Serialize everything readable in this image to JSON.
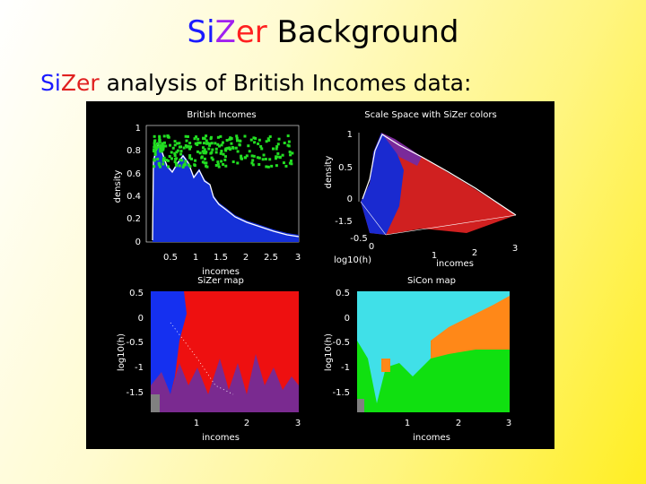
{
  "title": {
    "segments": [
      {
        "text": "Si",
        "color": "#1a1aff"
      },
      {
        "text": "Z",
        "color": "#a020f0"
      },
      {
        "text": "er",
        "color": "#ff2020"
      },
      {
        "text": " Background",
        "color": "#000000"
      }
    ]
  },
  "subtitle": {
    "segments": [
      {
        "text": "Si",
        "color": "#1a1aff"
      },
      {
        "text": "Zer",
        "color": "#e02020"
      },
      {
        "text": " analysis of British Incomes data:",
        "color": "#000000"
      }
    ]
  },
  "figure": {
    "panels": [
      {
        "title": "British Incomes",
        "y_label": "density",
        "x_label": "incomes",
        "y_ticks": [
          "1",
          "0.8",
          "0.6",
          "0.4",
          "0.2",
          "0"
        ],
        "x_ticks": [
          "0.5",
          "1",
          "1.5",
          "2",
          "2.5",
          "3"
        ]
      },
      {
        "title": "Scale Space with SiZer colors",
        "z_label": "density",
        "h_label": "log10(h)",
        "x_label": "incomes",
        "z_ticks": [
          "1",
          "0.5",
          "0"
        ],
        "h_ticks": [
          "-1.5",
          "-0.5",
          "0"
        ],
        "x_ticks": [
          "1",
          "2",
          "3"
        ]
      },
      {
        "title": "SiZer map",
        "y_label": "log10(h)",
        "x_label": "incomes",
        "y_ticks": [
          "0.5",
          "0",
          "-0.5",
          "-1",
          "-1.5"
        ],
        "x_ticks": [
          "1",
          "2",
          "3"
        ]
      },
      {
        "title": "SiCon map",
        "y_label": "log10(h)",
        "x_label": "incomes",
        "y_ticks": [
          "0.5",
          "0",
          "-0.5",
          "-1",
          "-1.5"
        ],
        "x_ticks": [
          "1",
          "2",
          "3"
        ]
      }
    ]
  }
}
